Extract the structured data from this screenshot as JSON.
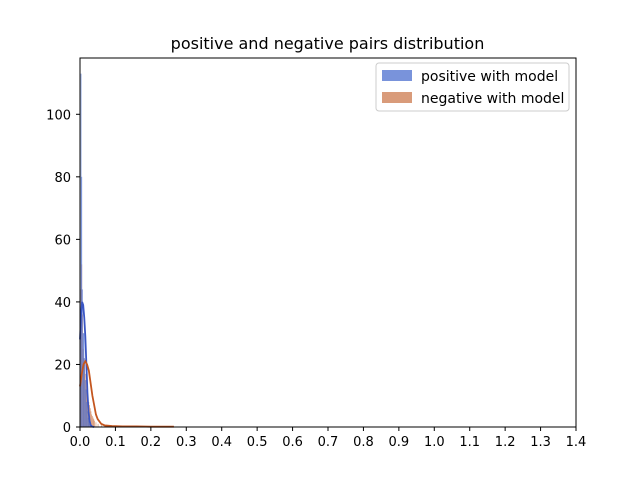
{
  "chart_data": {
    "type": "histogram",
    "title": "positive and negative pairs distribution",
    "xlabel": "",
    "ylabel": "",
    "xlim": [
      0.0,
      1.4
    ],
    "ylim": [
      0,
      118
    ],
    "xticks": [
      "0.0",
      "0.1",
      "0.2",
      "0.3",
      "0.4",
      "0.5",
      "0.6",
      "0.7",
      "0.8",
      "0.9",
      "1.0",
      "1.1",
      "1.2",
      "1.3",
      "1.4"
    ],
    "yticks": [
      "0",
      "20",
      "40",
      "60",
      "80",
      "100"
    ],
    "grid": false,
    "legend_position": "top-right",
    "bin_width": 0.002,
    "series": [
      {
        "name": "positive with model",
        "color": "#4c6fcf",
        "kde_color": "#3a56c4",
        "bins": [
          {
            "x": 0.0,
            "h": 28
          },
          {
            "x": 0.002,
            "h": 113
          },
          {
            "x": 0.004,
            "h": 80
          },
          {
            "x": 0.006,
            "h": 44
          },
          {
            "x": 0.008,
            "h": 30
          },
          {
            "x": 0.01,
            "h": 30
          },
          {
            "x": 0.012,
            "h": 22
          },
          {
            "x": 0.014,
            "h": 15
          },
          {
            "x": 0.016,
            "h": 12
          },
          {
            "x": 0.018,
            "h": 8
          },
          {
            "x": 0.02,
            "h": 5
          },
          {
            "x": 0.022,
            "h": 3
          },
          {
            "x": 0.024,
            "h": 2
          },
          {
            "x": 0.026,
            "h": 1
          },
          {
            "x": 0.028,
            "h": 0.5
          }
        ],
        "kde": [
          {
            "x": 0.0,
            "y": 28
          },
          {
            "x": 0.003,
            "y": 36
          },
          {
            "x": 0.006,
            "y": 40
          },
          {
            "x": 0.009,
            "y": 39
          },
          {
            "x": 0.012,
            "y": 35
          },
          {
            "x": 0.015,
            "y": 29
          },
          {
            "x": 0.018,
            "y": 20
          },
          {
            "x": 0.021,
            "y": 11
          },
          {
            "x": 0.024,
            "y": 5
          },
          {
            "x": 0.027,
            "y": 2
          },
          {
            "x": 0.03,
            "y": 0.6
          },
          {
            "x": 0.035,
            "y": 0.1
          },
          {
            "x": 0.04,
            "y": 0
          }
        ]
      },
      {
        "name": "negative with model",
        "color": "#cc7a4e",
        "kde_color": "#c4561f",
        "bins": [
          {
            "x": 0.0,
            "h": 13
          },
          {
            "x": 0.002,
            "h": 44
          },
          {
            "x": 0.004,
            "h": 52
          },
          {
            "x": 0.006,
            "h": 36
          },
          {
            "x": 0.008,
            "h": 25
          },
          {
            "x": 0.01,
            "h": 22
          },
          {
            "x": 0.012,
            "h": 20
          },
          {
            "x": 0.014,
            "h": 17
          },
          {
            "x": 0.016,
            "h": 15
          },
          {
            "x": 0.018,
            "h": 13
          },
          {
            "x": 0.02,
            "h": 11
          },
          {
            "x": 0.022,
            "h": 10
          },
          {
            "x": 0.024,
            "h": 8
          },
          {
            "x": 0.026,
            "h": 7
          },
          {
            "x": 0.028,
            "h": 6
          },
          {
            "x": 0.03,
            "h": 5
          },
          {
            "x": 0.032,
            "h": 4
          },
          {
            "x": 0.034,
            "h": 3.5
          },
          {
            "x": 0.036,
            "h": 3
          },
          {
            "x": 0.038,
            "h": 2.5
          },
          {
            "x": 0.04,
            "h": 2
          },
          {
            "x": 0.044,
            "h": 1.5
          },
          {
            "x": 0.05,
            "h": 1
          },
          {
            "x": 0.06,
            "h": 0.6
          },
          {
            "x": 0.07,
            "h": 0.4
          },
          {
            "x": 0.09,
            "h": 0.3
          },
          {
            "x": 0.12,
            "h": 0.2
          },
          {
            "x": 0.16,
            "h": 0.15
          },
          {
            "x": 0.2,
            "h": 0.1
          },
          {
            "x": 0.24,
            "h": 0.1
          },
          {
            "x": 0.26,
            "h": 0.1
          }
        ],
        "kde": [
          {
            "x": 0.0,
            "y": 13
          },
          {
            "x": 0.005,
            "y": 17
          },
          {
            "x": 0.01,
            "y": 20
          },
          {
            "x": 0.015,
            "y": 21
          },
          {
            "x": 0.02,
            "y": 20
          },
          {
            "x": 0.025,
            "y": 18
          },
          {
            "x": 0.03,
            "y": 14
          },
          {
            "x": 0.035,
            "y": 10
          },
          {
            "x": 0.04,
            "y": 7
          },
          {
            "x": 0.045,
            "y": 4
          },
          {
            "x": 0.05,
            "y": 2.5
          },
          {
            "x": 0.06,
            "y": 1
          },
          {
            "x": 0.07,
            "y": 0.5
          },
          {
            "x": 0.09,
            "y": 0.3
          },
          {
            "x": 0.12,
            "y": 0.2
          },
          {
            "x": 0.16,
            "y": 0.2
          },
          {
            "x": 0.2,
            "y": 0.1
          },
          {
            "x": 0.265,
            "y": 0.1
          }
        ]
      }
    ]
  }
}
